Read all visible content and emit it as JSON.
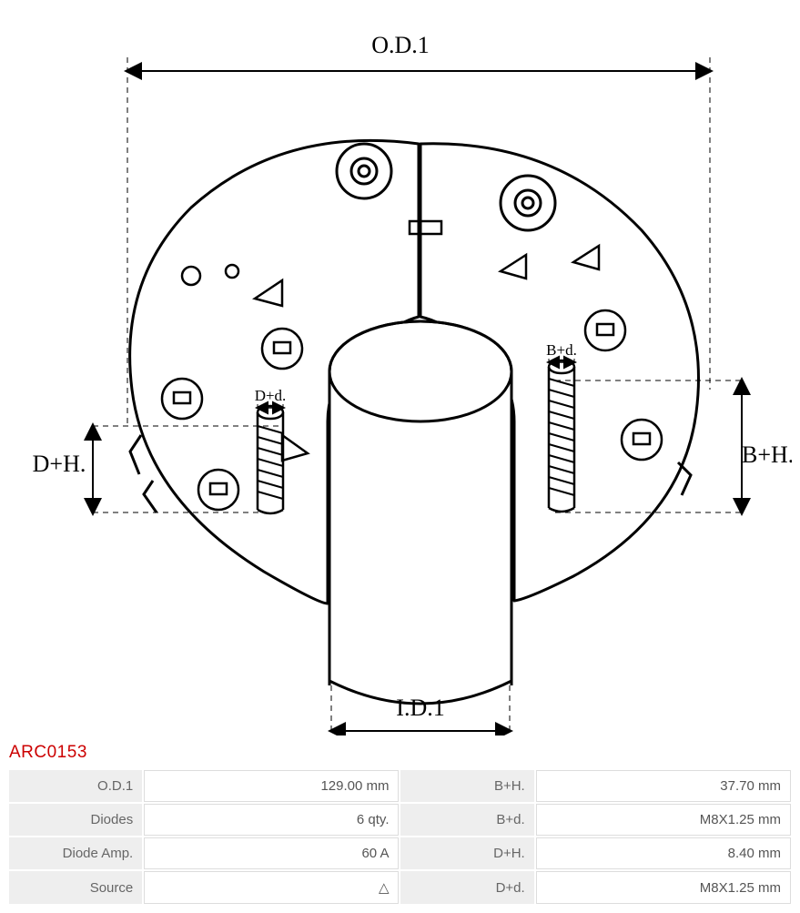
{
  "part_number": "ARC0153",
  "diagram": {
    "labels": {
      "od1": "O.D.1",
      "id1": "I.D.1",
      "bh": "B+H.",
      "bd": "B+d.",
      "dh": "D+H.",
      "dd": "D+d."
    },
    "stroke": "#000000",
    "fill": "#ffffff",
    "label_font": "26px serif",
    "small_label_font": "17px serif"
  },
  "spec_table": {
    "rows": [
      {
        "l1": "O.D.1",
        "v1": "129.00 mm",
        "l2": "B+H.",
        "v2": "37.70 mm"
      },
      {
        "l1": "Diodes",
        "v1": "6 qty.",
        "l2": "B+d.",
        "v2": "M8X1.25 mm"
      },
      {
        "l1": "Diode Amp.",
        "v1": "60 A",
        "l2": "D+H.",
        "v2": "8.40 mm"
      },
      {
        "l1": "Source",
        "v1": "△",
        "l2": "D+d.",
        "v2": "M8X1.25 mm"
      }
    ],
    "label_bg": "#eeeeee",
    "value_border": "#dddddd",
    "text_color": "#555555"
  }
}
